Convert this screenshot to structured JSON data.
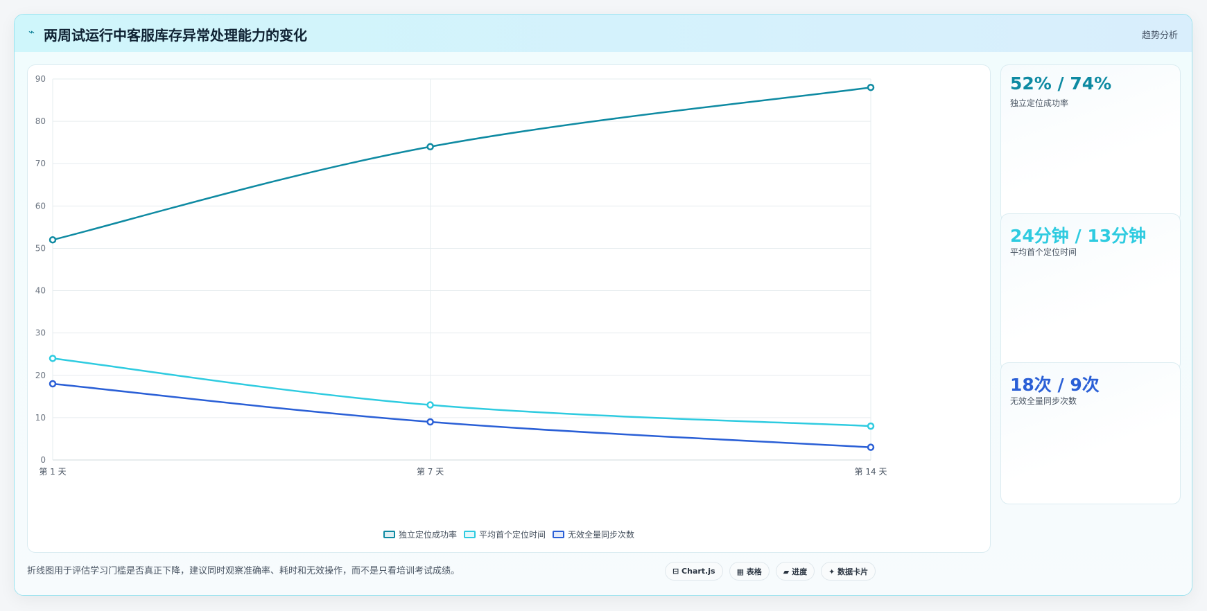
{
  "header": {
    "icon": "⌁",
    "title": "两周试运行中客服库存异常处理能力的变化",
    "action": "趋势分析"
  },
  "chart_data": {
    "type": "line",
    "categories": [
      "第 1 天",
      "第 7 天",
      "第 14 天"
    ],
    "x_positions": [
      1,
      7,
      14
    ],
    "ylim": [
      0,
      90
    ],
    "yticks": [
      0,
      10,
      20,
      30,
      40,
      50,
      60,
      70,
      80,
      90
    ],
    "grid": true,
    "legend_position": "bottom",
    "series": [
      {
        "name": "独立定位成功率",
        "values": [
          52,
          74,
          88
        ],
        "color": "#0e8aa2"
      },
      {
        "name": "平均首个定位时间",
        "values": [
          24,
          13,
          8
        ],
        "color": "#2ecbe0"
      },
      {
        "name": "无效全量同步次数",
        "values": [
          18,
          9,
          3
        ],
        "color": "#2a5fd6"
      }
    ]
  },
  "stats": [
    {
      "value": "52% / 74%",
      "label": "独立定位成功率",
      "color": "#0e8aa2"
    },
    {
      "value": "24分钟 / 13分钟",
      "label": "平均首个定位时间",
      "color": "#2ecbe0"
    },
    {
      "value": "18次 / 9次",
      "label": "无效全量同步次数",
      "color": "#2a5fd6"
    }
  ],
  "footer": {
    "note": "折线图用于评估学习门槛是否真正下降，建议同时观察准确率、耗时和无效操作，而不是只看培训考试成绩。",
    "chips": [
      "⊟ Chart.js",
      "▦ 表格",
      "▰ 进度",
      "✦ 数据卡片"
    ]
  }
}
